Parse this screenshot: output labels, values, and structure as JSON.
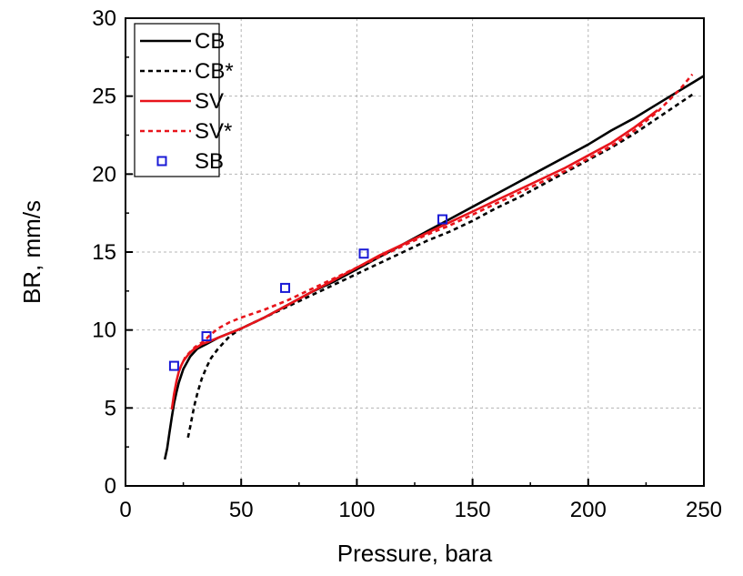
{
  "chart_data": {
    "type": "line",
    "title": "",
    "xlabel": "Pressure, bara",
    "ylabel": "BR, mm/s",
    "xlim": [
      0,
      250
    ],
    "ylim": [
      0,
      30
    ],
    "xticks": [
      0,
      50,
      100,
      150,
      200,
      250
    ],
    "yticks": [
      0,
      5,
      10,
      15,
      20,
      25,
      30
    ],
    "grid": true,
    "legend_position": "top-left",
    "series": [
      {
        "name": "CB",
        "kind": "line",
        "color": "#000000",
        "dash": "solid",
        "x": [
          17,
          18,
          19,
          20,
          21,
          22,
          23,
          25,
          28,
          31,
          35,
          40,
          45,
          50,
          60,
          70,
          80,
          90,
          100,
          110,
          120,
          130,
          140,
          150,
          160,
          170,
          180,
          190,
          200,
          210,
          220,
          230,
          240,
          250
        ],
        "y": [
          1.7,
          2.4,
          3.4,
          4.4,
          5.3,
          6.0,
          6.6,
          7.5,
          8.3,
          8.8,
          9.1,
          9.5,
          9.8,
          10.1,
          10.8,
          11.6,
          12.4,
          13.1,
          13.9,
          14.7,
          15.5,
          16.3,
          17.1,
          17.9,
          18.7,
          19.5,
          20.3,
          21.1,
          21.9,
          22.8,
          23.6,
          24.5,
          25.4,
          26.3
        ]
      },
      {
        "name": "CB*",
        "kind": "line",
        "color": "#000000",
        "dash": "dashed",
        "x": [
          27,
          28,
          29,
          30,
          31,
          32,
          33,
          35,
          37,
          40,
          45,
          50,
          60,
          70,
          80,
          90,
          100,
          110,
          120,
          130,
          140,
          150,
          160,
          170,
          180,
          190,
          200,
          210,
          220,
          230,
          240,
          245
        ],
        "y": [
          3.1,
          3.8,
          4.6,
          5.3,
          5.9,
          6.4,
          6.9,
          7.6,
          8.2,
          8.8,
          9.6,
          10.1,
          10.8,
          11.5,
          12.2,
          12.9,
          13.6,
          14.3,
          15.0,
          15.7,
          16.3,
          17.0,
          17.8,
          18.5,
          19.3,
          20.1,
          20.9,
          21.7,
          22.6,
          23.6,
          24.6,
          25.1
        ]
      },
      {
        "name": "SV",
        "kind": "line",
        "color": "#e8141b",
        "dash": "solid",
        "x": [
          20,
          21,
          22,
          23,
          24,
          25,
          27,
          29,
          31,
          33,
          35,
          40,
          45,
          50,
          60,
          70,
          80,
          90,
          100,
          110,
          120,
          130,
          140,
          150,
          160,
          170,
          180,
          190,
          200,
          210,
          220,
          230
        ],
        "y": [
          4.9,
          5.9,
          6.7,
          7.3,
          7.7,
          8.0,
          8.4,
          8.7,
          8.9,
          9.1,
          9.2,
          9.5,
          9.8,
          10.1,
          10.8,
          11.6,
          12.4,
          13.2,
          14.0,
          14.8,
          15.5,
          16.2,
          16.9,
          17.6,
          18.3,
          19.0,
          19.7,
          20.4,
          21.2,
          22.0,
          23.0,
          24.1
        ]
      },
      {
        "name": "SV*",
        "kind": "line",
        "color": "#e8141b",
        "dash": "dashed",
        "x": [
          25,
          26,
          28,
          30,
          32,
          34,
          36,
          40,
          45,
          50,
          60,
          70,
          80,
          90,
          100,
          110,
          120,
          130,
          140,
          150,
          160,
          170,
          180,
          190,
          200,
          210,
          220,
          230,
          240,
          245
        ],
        "y": [
          8.0,
          8.3,
          8.6,
          8.9,
          9.1,
          9.3,
          9.6,
          10.1,
          10.5,
          10.8,
          11.3,
          11.9,
          12.6,
          13.3,
          14.0,
          14.7,
          15.4,
          16.1,
          16.7,
          17.4,
          18.1,
          18.8,
          19.5,
          20.2,
          21.0,
          21.8,
          22.8,
          24.0,
          25.5,
          26.4
        ]
      },
      {
        "name": "SB",
        "kind": "scatter",
        "color": "#1a1ad6",
        "x": [
          21,
          35,
          69,
          103,
          137
        ],
        "y": [
          7.7,
          9.6,
          12.7,
          14.9,
          17.1
        ]
      }
    ]
  }
}
